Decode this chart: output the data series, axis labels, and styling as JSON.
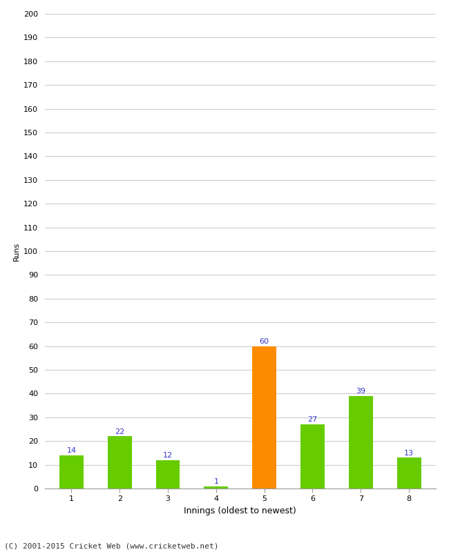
{
  "categories": [
    "1",
    "2",
    "3",
    "4",
    "5",
    "6",
    "7",
    "8"
  ],
  "values": [
    14,
    22,
    12,
    1,
    60,
    27,
    39,
    13
  ],
  "bar_colors": [
    "#66cc00",
    "#66cc00",
    "#66cc00",
    "#66cc00",
    "#ff8c00",
    "#66cc00",
    "#66cc00",
    "#66cc00"
  ],
  "xlabel": "Innings (oldest to newest)",
  "ylabel": "Runs",
  "ylim": [
    0,
    200
  ],
  "yticks": [
    0,
    10,
    20,
    30,
    40,
    50,
    60,
    70,
    80,
    90,
    100,
    110,
    120,
    130,
    140,
    150,
    160,
    170,
    180,
    190,
    200
  ],
  "label_color": "#3333cc",
  "label_fontsize": 8,
  "axis_fontsize": 8,
  "xlabel_fontsize": 9,
  "ylabel_fontsize": 8,
  "background_color": "#ffffff",
  "grid_color": "#cccccc",
  "footer": "(C) 2001-2015 Cricket Web (www.cricketweb.net)"
}
